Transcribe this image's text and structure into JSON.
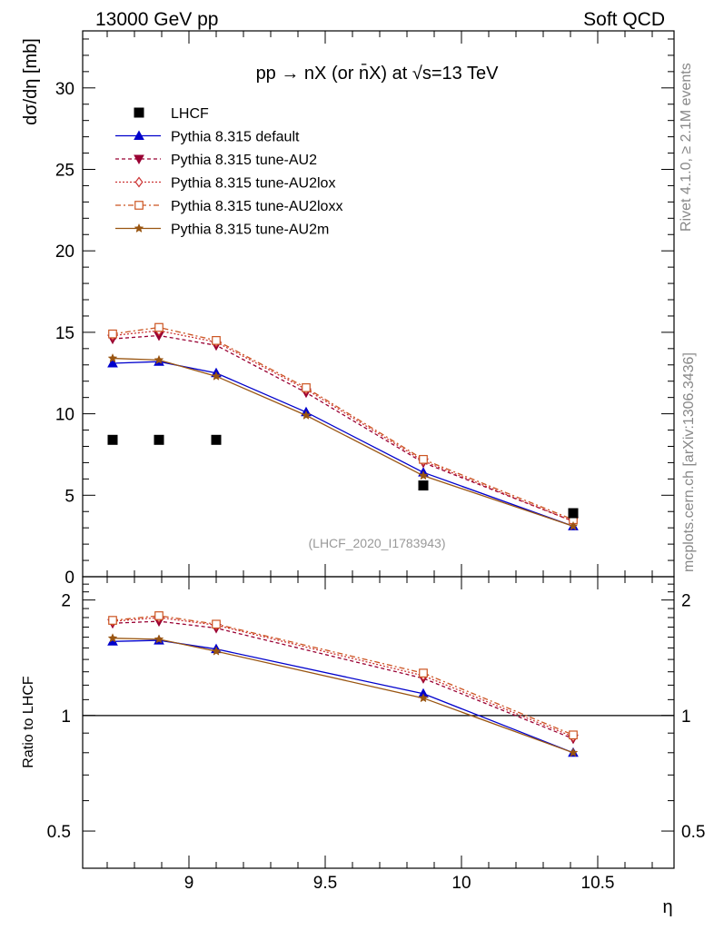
{
  "header": {
    "left": "13000 GeV pp",
    "right": "Soft QCD"
  },
  "side_labels": {
    "rivet": "Rivet 4.1.0, ≥ 2.1M events",
    "mcplots": "mcplots.cern.ch [arXiv:1306.3436]"
  },
  "chart_data": {
    "type": "line",
    "title": "pp → nX (or n̄X) at √s=13 TeV",
    "analysis_tag": "(LHCF_2020_I1783943)",
    "xlabel": "η",
    "ylabel": "dσ/dη [mb]",
    "ratio_ylabel": "Ratio to LHCF",
    "xlim": [
      8.61,
      10.78
    ],
    "ylim": [
      0,
      33.5
    ],
    "ratio_ylim": [
      0.4,
      2.3
    ],
    "x_ticks": [
      9,
      9.5,
      10,
      10.5
    ],
    "x_tick_labels": [
      "9",
      "9.5",
      "10",
      "10.5"
    ],
    "y_ticks": [
      0,
      5,
      10,
      15,
      20,
      25,
      30
    ],
    "y_tick_labels": [
      "0",
      "5",
      "10",
      "15",
      "20",
      "25",
      "30"
    ],
    "ratio_y_ticks": [
      0.5,
      1,
      2
    ],
    "ratio_y_tick_labels": [
      "0.5",
      "1",
      "2"
    ],
    "x": [
      8.72,
      8.89,
      9.1,
      9.43,
      9.86,
      10.41
    ],
    "data": {
      "name": "LHCF",
      "x": [
        8.72,
        8.89,
        9.1,
        9.86,
        10.41
      ],
      "values": [
        8.4,
        8.4,
        8.4,
        5.6,
        3.9
      ]
    },
    "series": [
      {
        "name": "Pythia 8.315 default",
        "color": "#0000cc",
        "dash": "",
        "marker": "triangle-up",
        "values": [
          13.1,
          13.2,
          12.5,
          10.1,
          6.4,
          3.1
        ],
        "ratio": [
          1.56,
          1.57,
          1.49,
          null,
          1.14,
          0.8
        ]
      },
      {
        "name": "Pythia 8.315 tune-AU2",
        "color": "#990033",
        "dash": "4,3",
        "marker": "triangle-down",
        "values": [
          14.6,
          14.8,
          14.2,
          11.3,
          7.0,
          3.4
        ],
        "ratio": [
          1.74,
          1.76,
          1.69,
          null,
          1.25,
          0.87
        ]
      },
      {
        "name": "Pythia 8.315 tune-AU2lox",
        "color": "#cc3333",
        "dash": "2,2",
        "marker": "diamond-open",
        "values": [
          14.8,
          15.1,
          14.4,
          11.5,
          7.1,
          3.4
        ],
        "ratio": [
          1.76,
          1.8,
          1.72,
          null,
          1.27,
          0.88
        ]
      },
      {
        "name": "Pythia 8.315 tune-AU2loxx",
        "color": "#cc5522",
        "dash": "6,3,2,3",
        "marker": "square-open",
        "values": [
          14.9,
          15.3,
          14.5,
          11.6,
          7.2,
          3.5
        ],
        "ratio": [
          1.77,
          1.82,
          1.73,
          null,
          1.29,
          0.89
        ]
      },
      {
        "name": "Pythia 8.315 tune-AU2m",
        "color": "#995511",
        "dash": "",
        "marker": "star",
        "values": [
          13.4,
          13.3,
          12.3,
          9.9,
          6.2,
          3.1
        ],
        "ratio": [
          1.59,
          1.58,
          1.47,
          null,
          1.11,
          0.8
        ]
      }
    ]
  }
}
